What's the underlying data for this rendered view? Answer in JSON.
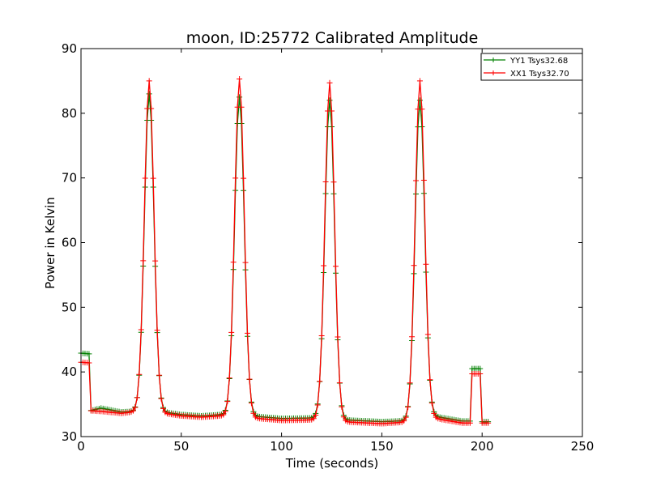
{
  "chart_data": {
    "type": "line",
    "title": "moon, ID:25772 Calibrated Amplitude",
    "xlabel": "Time (seconds)",
    "ylabel": "Power in Kelvin",
    "xlim": [
      0,
      250
    ],
    "ylim": [
      30,
      90
    ],
    "xticks": [
      0,
      50,
      100,
      150,
      200,
      250
    ],
    "yticks": [
      30,
      40,
      50,
      60,
      70,
      80,
      90
    ],
    "grid": false,
    "legend_position": "top-right",
    "marker": "plus",
    "sample_step": 1,
    "series": [
      {
        "name": "YY1 Tsys32.68",
        "color": "#008000",
        "baseline": [
          [
            0,
            42.9
          ],
          [
            4,
            42.8
          ],
          [
            4.5,
            34.0
          ],
          [
            10,
            34.4
          ],
          [
            20,
            33.8
          ],
          [
            26,
            33.9
          ],
          [
            41,
            33.8
          ],
          [
            50,
            33.4
          ],
          [
            60,
            33.2
          ],
          [
            70,
            33.4
          ],
          [
            84,
            33.2
          ],
          [
            100,
            32.8
          ],
          [
            120,
            32.9
          ],
          [
            130,
            32.6
          ],
          [
            150,
            32.3
          ],
          [
            165,
            32.5
          ],
          [
            175,
            33.2
          ],
          [
            190,
            32.4
          ],
          [
            194.5,
            32.4
          ],
          [
            195,
            40.5
          ],
          [
            199,
            40.5
          ],
          [
            199.5,
            32.3
          ],
          [
            203,
            32.3
          ]
        ],
        "peaks": [
          {
            "center": 34,
            "height": 83.0,
            "width": 2.4
          },
          {
            "center": 79,
            "height": 82.5,
            "width": 2.4
          },
          {
            "center": 124,
            "height": 82.0,
            "width": 2.4
          },
          {
            "center": 169,
            "height": 82.0,
            "width": 2.4
          }
        ]
      },
      {
        "name": "XX1 Tsys32.70",
        "color": "#ff0000",
        "baseline": [
          [
            0,
            41.5
          ],
          [
            4,
            41.4
          ],
          [
            4.5,
            34.0
          ],
          [
            10,
            33.9
          ],
          [
            20,
            33.6
          ],
          [
            26,
            33.8
          ],
          [
            41,
            33.6
          ],
          [
            50,
            33.2
          ],
          [
            60,
            33.0
          ],
          [
            70,
            33.2
          ],
          [
            84,
            32.9
          ],
          [
            100,
            32.5
          ],
          [
            120,
            32.6
          ],
          [
            130,
            32.3
          ],
          [
            150,
            32.0
          ],
          [
            165,
            32.3
          ],
          [
            175,
            32.9
          ],
          [
            190,
            32.1
          ],
          [
            194.5,
            32.1
          ],
          [
            195,
            39.7
          ],
          [
            199,
            39.7
          ],
          [
            199.5,
            32.1
          ],
          [
            203,
            32.1
          ]
        ],
        "peaks": [
          {
            "center": 34,
            "height": 85.0,
            "width": 2.4
          },
          {
            "center": 79,
            "height": 85.3,
            "width": 2.4
          },
          {
            "center": 124,
            "height": 84.7,
            "width": 2.4
          },
          {
            "center": 169,
            "height": 85.0,
            "width": 2.4
          }
        ]
      }
    ]
  }
}
